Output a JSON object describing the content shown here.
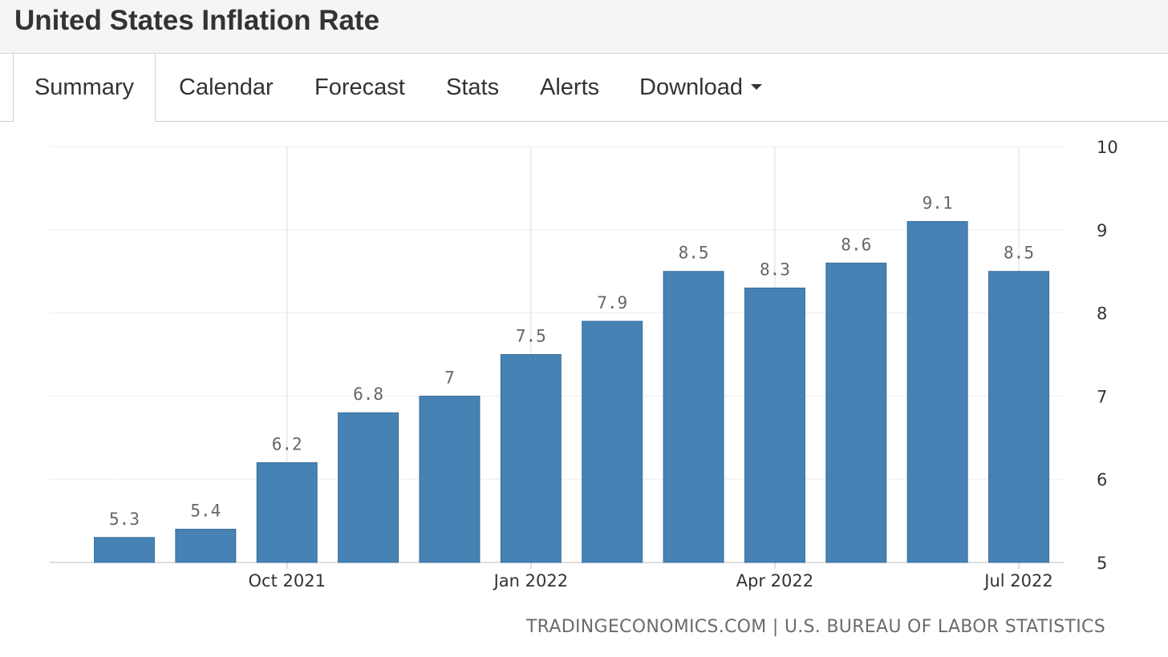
{
  "page": {
    "title": "United States Inflation Rate"
  },
  "tabs": [
    {
      "label": "Summary",
      "active": true
    },
    {
      "label": "Calendar"
    },
    {
      "label": "Forecast"
    },
    {
      "label": "Stats"
    },
    {
      "label": "Alerts"
    },
    {
      "label": "Download",
      "has_dropdown": true
    }
  ],
  "credit": "TRADINGECONOMICS.COM | U.S. BUREAU OF LABOR STATISTICS",
  "colors": {
    "bar": "#4682b4",
    "grid": "#dcdcdc",
    "label": "#666666"
  },
  "chart_data": {
    "type": "bar",
    "categories": [
      "Aug 2021",
      "Sep 2021",
      "Oct 2021",
      "Nov 2021",
      "Dec 2021",
      "Jan 2022",
      "Feb 2022",
      "Mar 2022",
      "Apr 2022",
      "May 2022",
      "Jun 2022",
      "Jul 2022"
    ],
    "values": [
      5.3,
      5.4,
      6.2,
      6.8,
      7,
      7.5,
      7.9,
      8.5,
      8.3,
      8.6,
      9.1,
      8.5
    ],
    "value_labels": [
      "5.3",
      "5.4",
      "6.2",
      "6.8",
      "7",
      "7.5",
      "7.9",
      "8.5",
      "8.3",
      "8.6",
      "9.1",
      "8.5"
    ],
    "x_tick_labels": [
      {
        "category": "Oct 2021",
        "label": "Oct 2021"
      },
      {
        "category": "Jan 2022",
        "label": "Jan 2022"
      },
      {
        "category": "Apr 2022",
        "label": "Apr 2022"
      },
      {
        "category": "Jul 2022",
        "label": "Jul 2022"
      }
    ],
    "y_ticks": [
      5,
      6,
      7,
      8,
      9,
      10
    ],
    "ylim": [
      5,
      10
    ],
    "y_axis_side": "right",
    "grid": true
  }
}
